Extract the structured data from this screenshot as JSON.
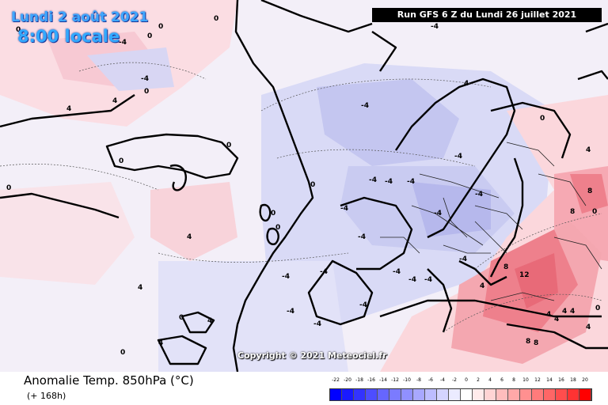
{
  "map": {
    "date_line": "Lundi 2 août 2021",
    "time_line": "8:00 locale",
    "run_info": "Run GFS 6 Z du Lundi 26 juillet 2021",
    "copyright": "Copyright © 2021 Meteociel.fr"
  },
  "contour_labels": [
    "0",
    "0",
    "0",
    "0",
    "-4",
    "-4",
    "4",
    "4",
    "0",
    "-4",
    "-4",
    "-4",
    "-4",
    "-4",
    "-4",
    "-4",
    "-4",
    "-4",
    "-4",
    "-4",
    "-4",
    "-4",
    "0",
    "4",
    "4",
    "8",
    "12",
    "8",
    "8",
    "4",
    "4",
    "4",
    "4",
    "0",
    "0",
    "0",
    "0",
    "4",
    "4",
    "4",
    "0",
    "0",
    "-4",
    "-4",
    "-4",
    "-4",
    "-4",
    "4",
    "8",
    "8",
    "4",
    "0",
    "4",
    "0",
    "0",
    "-4",
    "0",
    "4"
  ],
  "legend": {
    "title": "Anomalie Temp. 850hPa (°C)",
    "subtitle": "(+ 168h)",
    "tick_labels": [
      "-22",
      "-20",
      "-18",
      "-16",
      "-14",
      "-12",
      "-10",
      "-8",
      "-6",
      "-4",
      "-2",
      "0",
      "2",
      "4",
      "6",
      "8",
      "10",
      "12",
      "14",
      "16",
      "18",
      "20"
    ],
    "colors": [
      "#0000ff",
      "#1a1aff",
      "#3333ff",
      "#4d4dff",
      "#6666ff",
      "#7b7bff",
      "#9090ff",
      "#a8a8ff",
      "#bdbdff",
      "#d4d4ff",
      "#ebebff",
      "#ffffff",
      "#ffebeb",
      "#ffd4d4",
      "#ffbdbd",
      "#ffa8a8",
      "#ff9090",
      "#ff7b7b",
      "#ff6666",
      "#ff4d4d",
      "#ff3333",
      "#ff0000"
    ]
  }
}
